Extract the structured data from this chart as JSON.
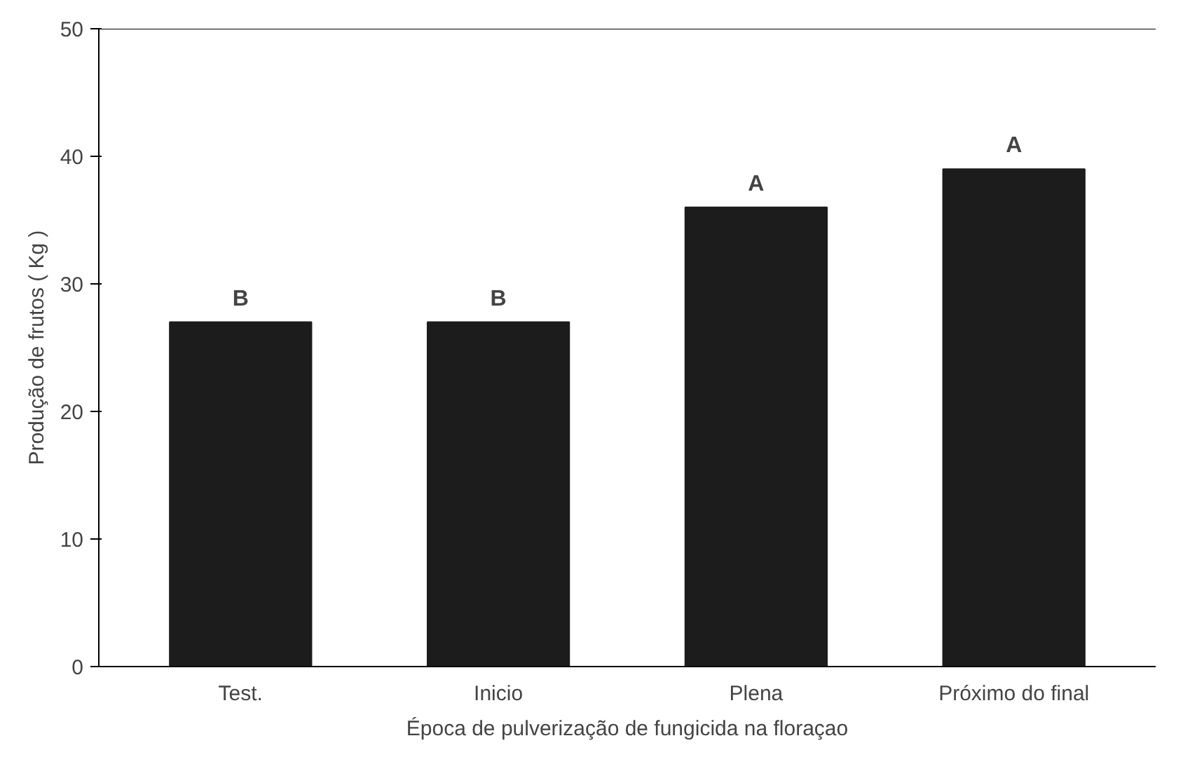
{
  "chart_data": {
    "type": "bar",
    "xlabel": "Época de pulverização de fungicida na floraçao",
    "ylabel": "Produção de frutos ( Kg )",
    "categories": [
      "Test.",
      "Inicio",
      "Plena",
      "Próximo do final"
    ],
    "values": [
      27,
      27,
      36,
      39
    ],
    "color": "#1c1c1c",
    "ylim": [
      0,
      50
    ],
    "yticks": [
      0,
      10,
      20,
      30,
      40,
      50
    ],
    "grid": false,
    "annotations": [
      {
        "text": "B",
        "x": "Test.",
        "y": 27
      },
      {
        "text": "B",
        "x": "Inicio",
        "y": 27
      },
      {
        "text": "A",
        "x": "Plena",
        "y": 36
      },
      {
        "text": "A",
        "x": "Próximo do final",
        "y": 39
      }
    ]
  }
}
